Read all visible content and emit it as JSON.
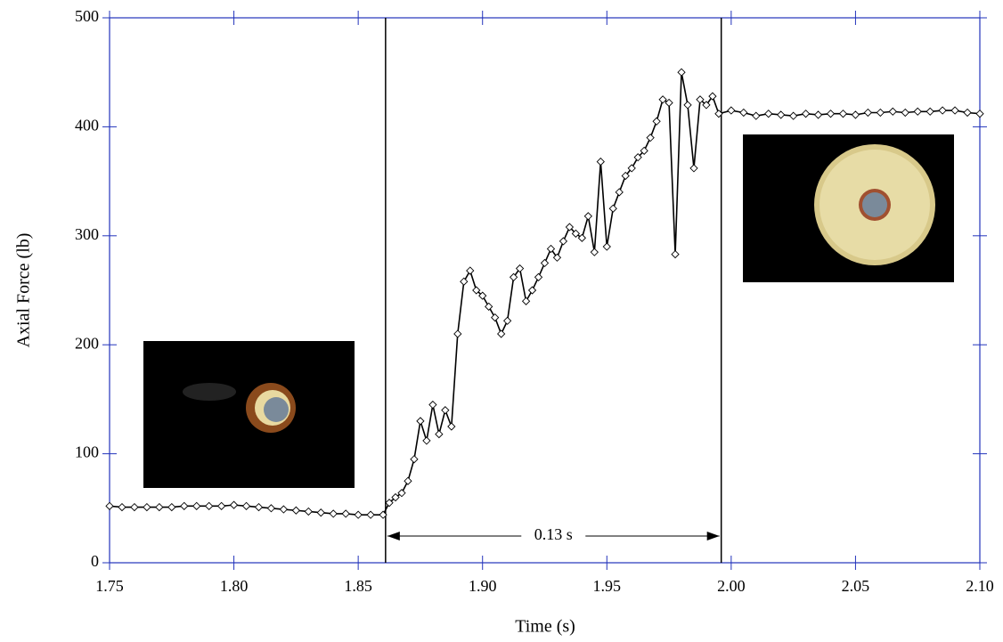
{
  "chart_data": {
    "type": "line",
    "xlabel": "Time (s)",
    "ylabel": "Axial Force (lb)",
    "x": [
      1.75,
      1.755,
      1.76,
      1.765,
      1.77,
      1.775,
      1.78,
      1.785,
      1.79,
      1.795,
      1.8,
      1.805,
      1.81,
      1.815,
      1.82,
      1.825,
      1.83,
      1.835,
      1.84,
      1.845,
      1.85,
      1.855,
      1.86,
      1.8625,
      1.865,
      1.8675,
      1.87,
      1.8725,
      1.875,
      1.8775,
      1.88,
      1.8825,
      1.885,
      1.8875,
      1.89,
      1.8925,
      1.895,
      1.8975,
      1.9,
      1.9025,
      1.905,
      1.9075,
      1.91,
      1.9125,
      1.915,
      1.9175,
      1.92,
      1.9225,
      1.925,
      1.9275,
      1.93,
      1.9325,
      1.935,
      1.9375,
      1.94,
      1.9425,
      1.945,
      1.9475,
      1.95,
      1.9525,
      1.955,
      1.9575,
      1.96,
      1.9625,
      1.965,
      1.9675,
      1.97,
      1.9725,
      1.975,
      1.9775,
      1.98,
      1.9825,
      1.985,
      1.9875,
      1.99,
      1.9925,
      1.995,
      2.0,
      2.005,
      2.01,
      2.015,
      2.02,
      2.025,
      2.03,
      2.035,
      2.04,
      2.045,
      2.05,
      2.055,
      2.06,
      2.065,
      2.07,
      2.075,
      2.08,
      2.085,
      2.09,
      2.095,
      2.1
    ],
    "values": [
      52,
      51,
      51,
      51,
      51,
      51,
      52,
      52,
      52,
      52,
      53,
      52,
      51,
      50,
      49,
      48,
      47,
      46,
      45,
      45,
      44,
      44,
      44,
      55,
      60,
      64,
      75,
      95,
      130,
      112,
      145,
      118,
      140,
      125,
      210,
      258,
      268,
      250,
      245,
      235,
      225,
      210,
      222,
      262,
      270,
      240,
      250,
      262,
      275,
      288,
      280,
      295,
      308,
      302,
      298,
      318,
      285,
      368,
      290,
      325,
      340,
      355,
      362,
      372,
      378,
      390,
      405,
      425,
      422,
      283,
      450,
      420,
      362,
      425,
      420,
      428,
      412,
      415,
      413,
      410,
      412,
      411,
      410,
      412,
      411,
      412,
      412,
      411,
      413,
      413,
      414,
      413,
      414,
      414,
      415,
      415,
      413,
      412
    ],
    "color": "#000000",
    "vlines": [
      1.861,
      1.996
    ],
    "annotation": "0.13 s",
    "xlim": [
      1.75,
      2.1
    ],
    "xticks": [
      1.75,
      {
        "value": 1.8,
        "label": "1.80"
      },
      {
        "value": 1.85,
        "label": "1.85"
      },
      {
        "value": 1.9,
        "label": "1.90"
      },
      1.95,
      {
        "value": 2.0,
        "label": "2.00"
      },
      2.05,
      {
        "value": 2.1,
        "label": "2.10"
      }
    ],
    "ylim": [
      0,
      500
    ],
    "yticks": [
      0,
      100,
      200,
      300,
      400,
      500
    ],
    "grid": false
  }
}
